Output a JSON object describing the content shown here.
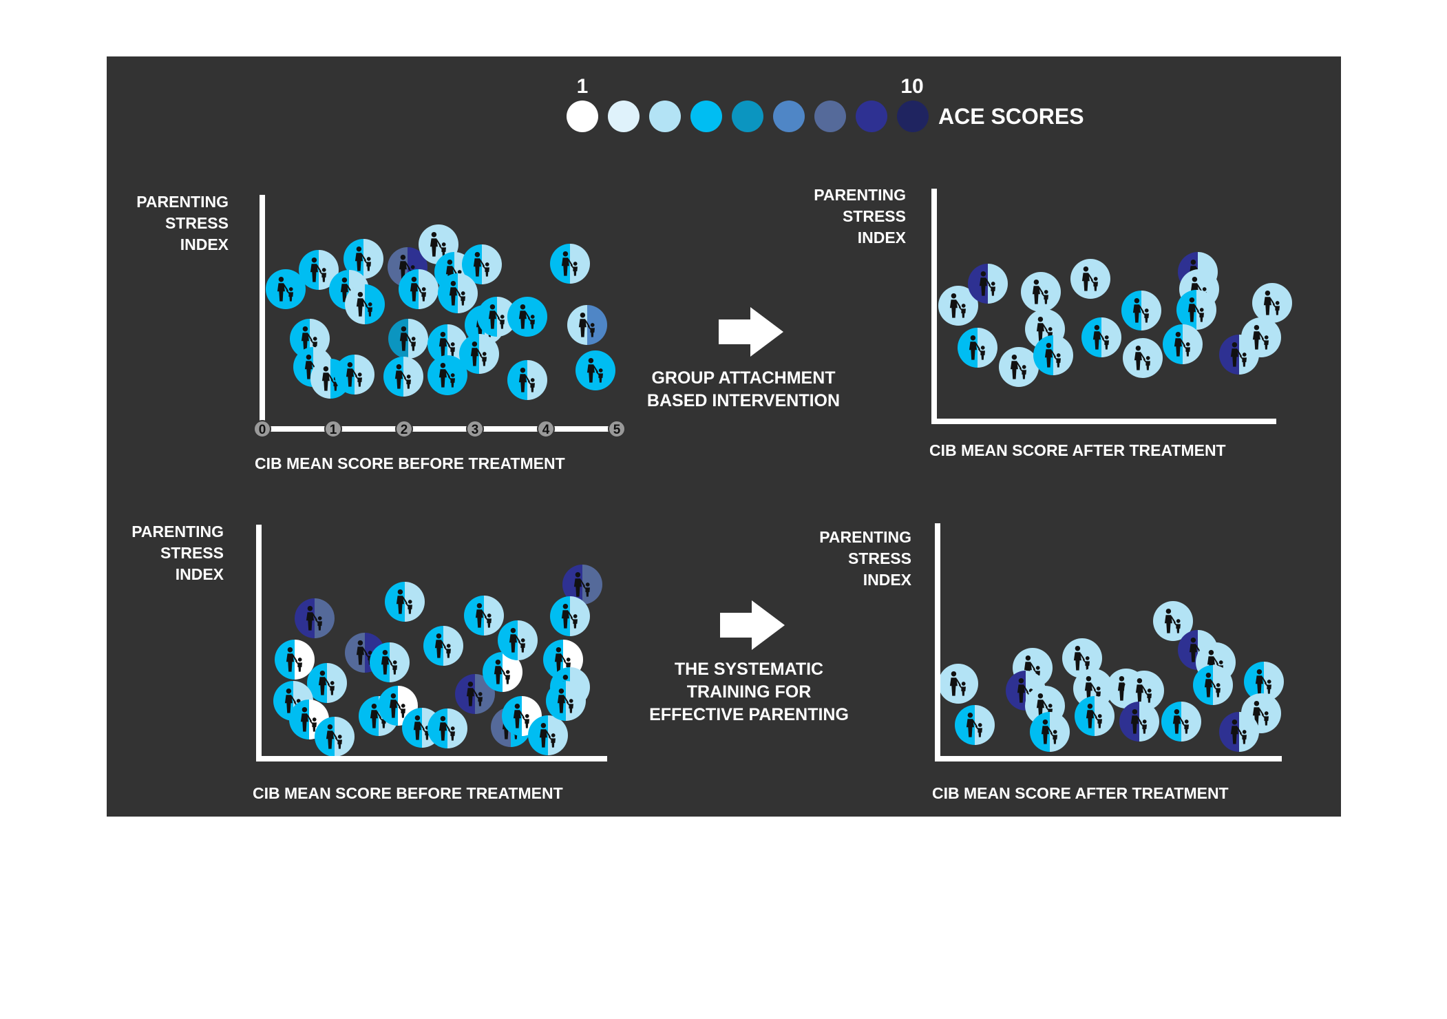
{
  "legend": {
    "low_label": "1",
    "high_label": "10",
    "title": "ACE SCORES",
    "colors": [
      "#ffffff",
      "#dff2fb",
      "#b3e3f5",
      "#00bdf2",
      "#0b95c0",
      "#4f86c6",
      "#556a9a",
      "#2e3192",
      "#1f2460"
    ]
  },
  "charts": [
    {
      "id": "top-before",
      "ylabel": [
        "PARENTING",
        "STRESS",
        "INDEX"
      ],
      "xlabel": "CIB MEAN SCORE BEFORE TREATMENT",
      "ticks": [
        "0",
        "1",
        "2",
        "3",
        "4",
        "5"
      ]
    },
    {
      "id": "top-after",
      "ylabel": [
        "PARENTING",
        "STRESS",
        "INDEX"
      ],
      "xlabel": "CIB MEAN SCORE AFTER TREATMENT"
    },
    {
      "id": "bottom-before",
      "ylabel": [
        "PARENTING",
        "STRESS",
        "INDEX"
      ],
      "xlabel": "CIB MEAN SCORE BEFORE TREATMENT"
    },
    {
      "id": "bottom-after",
      "ylabel": [
        "PARENTING",
        "STRESS",
        "INDEX"
      ],
      "xlabel": "CIB MEAN SCORE AFTER TREATMENT"
    }
  ],
  "interventions": [
    {
      "id": "group-attachment",
      "lines": [
        "GROUP ATTACHMENT",
        "BASED INTERVENTION"
      ]
    },
    {
      "id": "systematic-training",
      "lines": [
        "THE SYSTEMATIC",
        "TRAINING FOR",
        "EFFECTIVE PARENTING"
      ]
    }
  ],
  "icon": "parent-child-icon"
}
